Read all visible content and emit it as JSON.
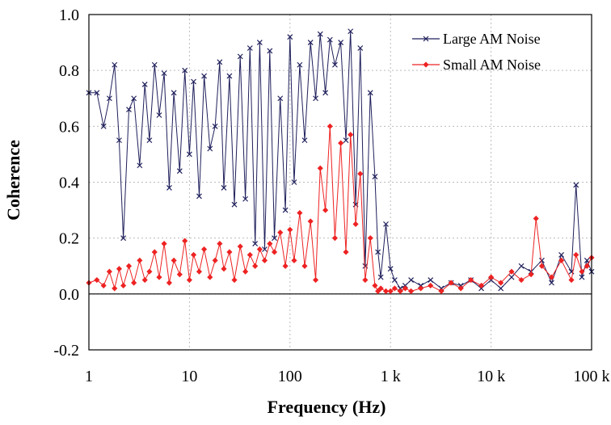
{
  "chart_data": {
    "type": "line",
    "title": "",
    "xlabel": "Frequency (Hz)",
    "ylabel": "Coherence",
    "xscale": "log",
    "xlim": [
      1,
      100000
    ],
    "ylim": [
      -0.2,
      1.0
    ],
    "grid": "dotted",
    "legend_position": "top-right",
    "x_ticks": [
      {
        "value": 1,
        "label": "1"
      },
      {
        "value": 10,
        "label": "10"
      },
      {
        "value": 100,
        "label": "100"
      },
      {
        "value": 1000,
        "label": "1 k"
      },
      {
        "value": 10000,
        "label": "10 k"
      },
      {
        "value": 100000,
        "label": "100 k"
      }
    ],
    "y_ticks": [
      {
        "value": -0.2,
        "label": "-0.2"
      },
      {
        "value": 0.0,
        "label": "0.0"
      },
      {
        "value": 0.2,
        "label": "0.2"
      },
      {
        "value": 0.4,
        "label": "0.4"
      },
      {
        "value": 0.6,
        "label": "0.6"
      },
      {
        "value": 0.8,
        "label": "0.8"
      },
      {
        "value": 1.0,
        "label": "1.0"
      }
    ],
    "series": [
      {
        "name": "Large AM Noise",
        "color": "#1f1f5c",
        "marker": "x",
        "x": [
          1,
          1.2,
          1.4,
          1.6,
          1.8,
          2.0,
          2.2,
          2.5,
          2.8,
          3.2,
          3.6,
          4,
          4.5,
          5,
          5.6,
          6.3,
          7,
          8,
          9,
          10,
          11,
          12.5,
          14,
          16,
          18,
          20,
          22,
          25,
          28,
          32,
          36,
          40,
          45,
          50,
          56,
          63,
          70,
          80,
          90,
          100,
          110,
          125,
          140,
          160,
          180,
          200,
          225,
          250,
          280,
          320,
          360,
          400,
          450,
          500,
          560,
          630,
          700,
          750,
          800,
          900,
          1000,
          1100,
          1250,
          1400,
          1600,
          2000,
          2500,
          3200,
          4000,
          5000,
          6300,
          8000,
          10000,
          12500,
          16000,
          20000,
          25000,
          32000,
          40000,
          50000,
          63000,
          70000,
          80000,
          90000,
          100000
        ],
        "y": [
          0.72,
          0.72,
          0.6,
          0.7,
          0.82,
          0.55,
          0.2,
          0.66,
          0.7,
          0.46,
          0.75,
          0.55,
          0.82,
          0.64,
          0.79,
          0.38,
          0.72,
          0.44,
          0.8,
          0.5,
          0.76,
          0.35,
          0.78,
          0.52,
          0.6,
          0.83,
          0.38,
          0.78,
          0.32,
          0.85,
          0.34,
          0.88,
          0.18,
          0.9,
          0.16,
          0.87,
          0.2,
          0.7,
          0.3,
          0.92,
          0.4,
          0.82,
          0.55,
          0.9,
          0.7,
          0.93,
          0.72,
          0.91,
          0.82,
          0.9,
          0.55,
          0.94,
          0.32,
          0.88,
          0.1,
          0.72,
          0.42,
          0.15,
          0.06,
          0.25,
          0.09,
          0.05,
          0.02,
          0.03,
          0.05,
          0.03,
          0.05,
          0.02,
          0.04,
          0.03,
          0.05,
          0.02,
          0.05,
          0.02,
          0.06,
          0.1,
          0.08,
          0.12,
          0.04,
          0.14,
          0.08,
          0.39,
          0.06,
          0.12,
          0.08
        ]
      },
      {
        "name": "Small AM Noise",
        "color": "#ee2222",
        "marker": "diamond",
        "x": [
          1,
          1.2,
          1.4,
          1.6,
          1.8,
          2.0,
          2.2,
          2.5,
          2.8,
          3.2,
          3.6,
          4,
          4.5,
          5,
          5.6,
          6.3,
          7,
          8,
          9,
          10,
          11,
          12.5,
          14,
          16,
          18,
          20,
          22,
          25,
          28,
          32,
          36,
          40,
          45,
          50,
          56,
          63,
          70,
          80,
          90,
          100,
          110,
          125,
          140,
          160,
          180,
          200,
          225,
          250,
          280,
          320,
          360,
          400,
          450,
          500,
          560,
          630,
          700,
          750,
          800,
          900,
          1000,
          1100,
          1250,
          1400,
          1600,
          2000,
          2500,
          3200,
          4000,
          5000,
          6300,
          8000,
          10000,
          12500,
          16000,
          20000,
          25000,
          28000,
          32000,
          40000,
          50000,
          63000,
          70000,
          80000,
          90000,
          100000
        ],
        "y": [
          0.04,
          0.05,
          0.03,
          0.08,
          0.02,
          0.09,
          0.03,
          0.1,
          0.04,
          0.12,
          0.05,
          0.08,
          0.15,
          0.06,
          0.18,
          0.04,
          0.12,
          0.07,
          0.19,
          0.05,
          0.14,
          0.08,
          0.16,
          0.06,
          0.12,
          0.18,
          0.09,
          0.15,
          0.05,
          0.17,
          0.08,
          0.14,
          0.1,
          0.16,
          0.12,
          0.18,
          0.15,
          0.22,
          0.1,
          0.23,
          0.12,
          0.29,
          0.1,
          0.26,
          0.05,
          0.45,
          0.3,
          0.6,
          0.2,
          0.54,
          0.15,
          0.57,
          0.25,
          0.43,
          0.05,
          0.2,
          0.03,
          0.01,
          0.02,
          0.01,
          0.01,
          0.02,
          0.01,
          0.02,
          0.01,
          0.02,
          0.03,
          0.01,
          0.04,
          0.02,
          0.05,
          0.03,
          0.06,
          0.04,
          0.08,
          0.05,
          0.07,
          0.27,
          0.1,
          0.06,
          0.12,
          0.05,
          0.14,
          0.08,
          0.1,
          0.13
        ]
      }
    ]
  }
}
